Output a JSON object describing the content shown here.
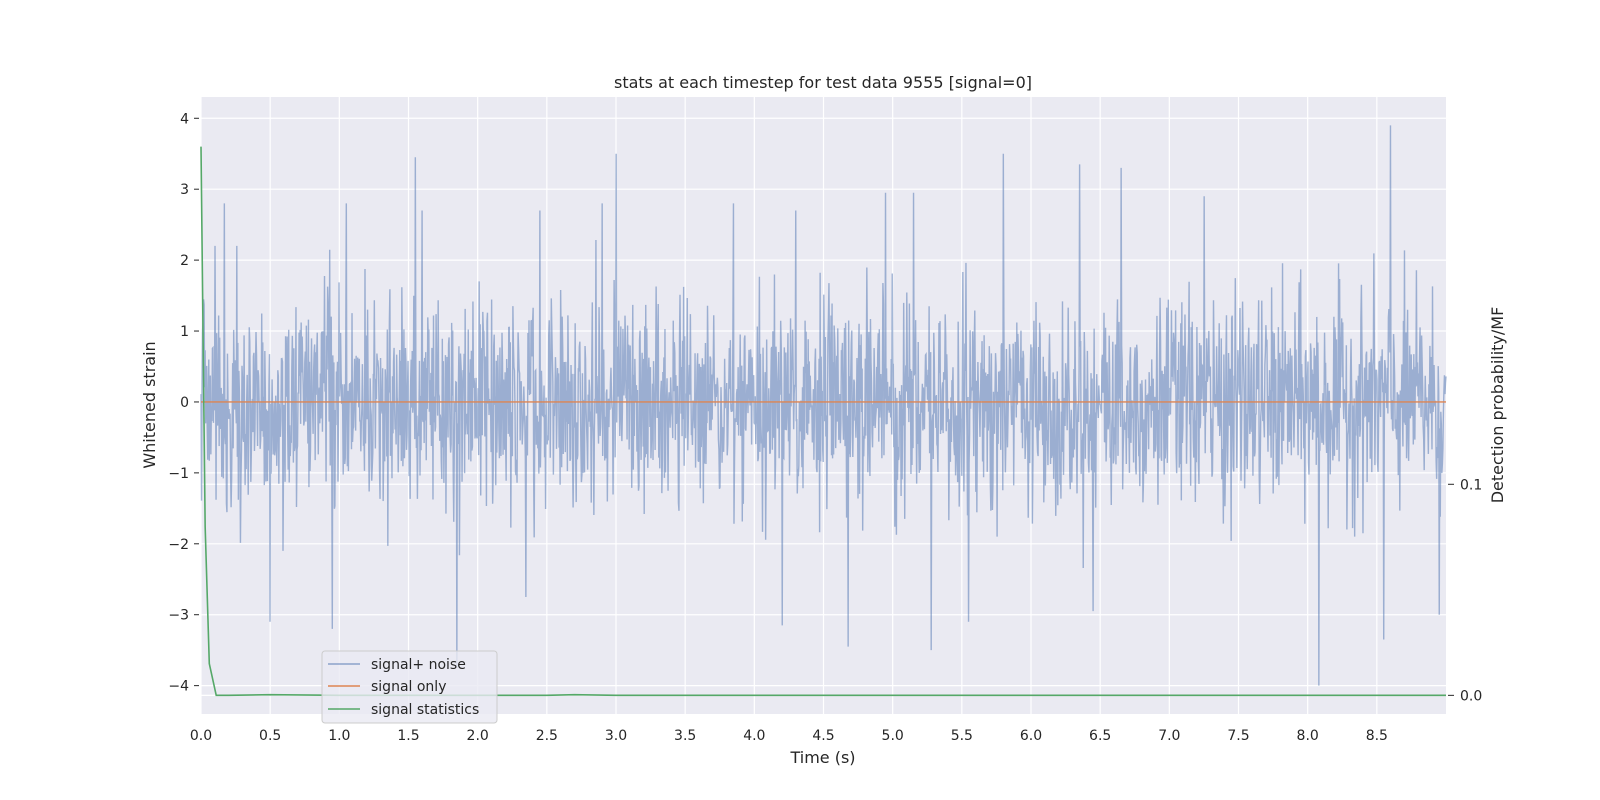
{
  "chart_data": {
    "type": "line",
    "title": "stats at each timestep for test data 9555 [signal=0]",
    "xlabel": "Time (s)",
    "ylabel": "Whitened strain",
    "y2label": "Detection probability/MF",
    "xlim": [
      0,
      9.0
    ],
    "ylim": [
      -4.4,
      4.3
    ],
    "y2lim": [
      -0.00884,
      0.2835
    ],
    "xticks": [
      "0.0",
      "0.5",
      "1.0",
      "1.5",
      "2.0",
      "2.5",
      "3.0",
      "3.5",
      "4.0",
      "4.5",
      "5.0",
      "5.5",
      "6.0",
      "6.5",
      "7.0",
      "7.5",
      "8.0",
      "8.5"
    ],
    "yticks": [
      "4",
      "3",
      "2",
      "1",
      "0",
      "−1",
      "−2",
      "−3",
      "−4"
    ],
    "y2ticks": [
      "0.1",
      "0.0"
    ],
    "grid": true,
    "legend_position": "lower-left",
    "series": [
      {
        "name": "signal+ noise",
        "color": "#4c72b0",
        "description": "whitened strain noise, roughly uniform amplitude",
        "envelope": {
          "typical_max": 1.6,
          "typical_min": -1.8,
          "peak_max": 3.9,
          "peak_min": -4.0
        },
        "peaks": [
          {
            "x": 0.1,
            "y": 2.2
          },
          {
            "x": 0.17,
            "y": 2.8
          },
          {
            "x": 0.26,
            "y": 2.2
          },
          {
            "x": 1.05,
            "y": 2.8
          },
          {
            "x": 1.55,
            "y": 3.45
          },
          {
            "x": 1.6,
            "y": 2.7
          },
          {
            "x": 2.45,
            "y": 2.7
          },
          {
            "x": 2.9,
            "y": 2.8
          },
          {
            "x": 3.0,
            "y": 3.5
          },
          {
            "x": 3.85,
            "y": 2.8
          },
          {
            "x": 4.3,
            "y": 2.7
          },
          {
            "x": 4.95,
            "y": 2.95
          },
          {
            "x": 5.15,
            "y": 2.95
          },
          {
            "x": 5.8,
            "y": 3.5
          },
          {
            "x": 6.35,
            "y": 3.35
          },
          {
            "x": 6.65,
            "y": 3.3
          },
          {
            "x": 7.25,
            "y": 2.9
          },
          {
            "x": 8.6,
            "y": 3.9
          },
          {
            "x": 8.95,
            "y": 3.1
          },
          {
            "x": 0.5,
            "y": -3.1
          },
          {
            "x": 0.95,
            "y": -3.2
          },
          {
            "x": 1.85,
            "y": -3.75
          },
          {
            "x": 2.35,
            "y": -2.75
          },
          {
            "x": 4.2,
            "y": -3.15
          },
          {
            "x": 4.68,
            "y": -3.45
          },
          {
            "x": 5.28,
            "y": -3.5
          },
          {
            "x": 5.55,
            "y": -3.1
          },
          {
            "x": 6.45,
            "y": -2.95
          },
          {
            "x": 8.08,
            "y": -4.0
          },
          {
            "x": 8.55,
            "y": -3.35
          },
          {
            "x": 8.95,
            "y": -3.0
          }
        ]
      },
      {
        "name": "signal only",
        "color": "#dd8452",
        "x": [
          0.0,
          9.0
        ],
        "y": [
          0.0,
          0.0
        ]
      },
      {
        "name": "signal statistics",
        "color": "#55a868",
        "axis": "right",
        "x": [
          0.0,
          0.01,
          0.03,
          0.06,
          0.11,
          0.2,
          0.5,
          1.0,
          2.0,
          2.5,
          2.7,
          3.0,
          4.0,
          5.0,
          6.0,
          7.0,
          8.0,
          9.0
        ],
        "y": [
          0.26,
          0.2,
          0.08,
          0.015,
          0.0,
          0.0,
          0.0003,
          0.0,
          0.0,
          0.0,
          0.0003,
          0.0,
          0.0,
          0.0,
          0.0,
          0.0,
          0.0,
          0.0
        ]
      }
    ]
  }
}
